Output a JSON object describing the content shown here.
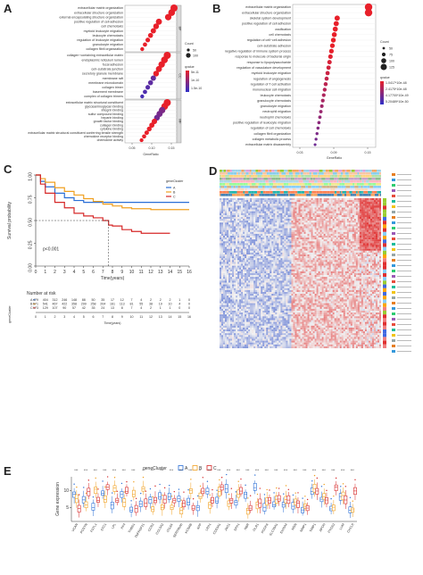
{
  "panels": {
    "A": {
      "letter": "A",
      "xlabel": "GeneRatio",
      "xticks": [
        "0.05",
        "0.10",
        "0.15"
      ],
      "facets": [
        "BP",
        "CC",
        "MF"
      ],
      "terms_bp": [
        "extracellular matrix organization",
        "extracellular structure organization",
        "external encapsulating structure organization",
        "positive regulation of cell adhesion",
        "cell chemotaxis",
        "myeloid leukocyte migration",
        "leukocyte chemotaxis",
        "regulation of leukocyte migration",
        "granulocyte migration",
        "collagen fibril organization"
      ],
      "terms_cc": [
        "collagen−containing extracellular matrix",
        "endoplasmic reticulum lumen",
        "focal adhesion",
        "cell−substrate junction",
        "secretory granule membrane",
        "membrane raft",
        "membrane microdomain",
        "collagen trimer",
        "basement membrane",
        "complex of collagen trimers"
      ],
      "terms_mf": [
        "extracellular matrix structural constituent",
        "glycosaminoglycan binding",
        "integrin binding",
        "sulfur compound binding",
        "heparin binding",
        "growth factor binding",
        "collagen binding",
        "cytokine binding",
        "extracellular matrix structural constituent conferring tensile strength",
        "chemokine receptor binding",
        "chemokine activity"
      ],
      "legend_count_title": "Count",
      "legend_count_values": [
        "50",
        "100"
      ],
      "legend_q_title": "qvalue",
      "legend_q_values": [
        "5e-11",
        "1e-10",
        "1.5e-10"
      ]
    },
    "B": {
      "letter": "B",
      "xlabel": "GeneRatio",
      "xticks": [
        "0.03",
        "0.09",
        "0.15"
      ],
      "terms": [
        "extracellular matrix organization",
        "extracellular structure organization",
        "skeletal system development",
        "positive regulation of cell adhesion",
        "ossification",
        "cell chemotaxis",
        "regulation of cell−cell adhesion",
        "cell−substrate adhesion",
        "negative regulation of immune system process",
        "response to molecule of bacterial origin",
        "response to lipopolysaccharide",
        "regulation of vasculature development",
        "myeloid leukocyte migration",
        "regulation of angiogenesis",
        "regulation of T cell activation",
        "mononuclear cell migration",
        "leukocyte chemotaxis",
        "granulocyte chemotaxis",
        "granulocyte migration",
        "neutrophil migration",
        "neutrophil chemotaxis",
        "positive regulation of leukocyte migration",
        "regulation of cell chemotaxis",
        "collagen fibril organization",
        "collagen metabolic process",
        "extracellular matrix disassembly"
      ],
      "legend_count_title": "Count",
      "legend_count_values": [
        "50",
        "75",
        "100",
        "125"
      ],
      "legend_q_title": "qvalue",
      "legend_q_values": [
        "1.0417*10e-48",
        "2.4175*10e-48",
        "4.17700*10e-49",
        "5.20489*10e-50"
      ]
    },
    "C": {
      "letter": "C",
      "ylabel": "Survival probability",
      "xlabel": "Time(years)",
      "pvalue": "p<0.001",
      "legend_title": "geneCluster",
      "legend_items": [
        "A",
        "B",
        "C"
      ],
      "xticks": [
        "0",
        "1",
        "2",
        "3",
        "4",
        "5",
        "6",
        "7",
        "8",
        "9",
        "10",
        "11",
        "12",
        "13",
        "14",
        "15",
        "16"
      ],
      "yticks": [
        "0.00",
        "0.25",
        "0.50",
        "0.75",
        "1.00"
      ],
      "risk_title": "Number at risk",
      "risk_ylabel": "geneCluster",
      "risk_rows": [
        {
          "label": "A",
          "values": "479 404 312 246 148 88 50 35 17 12 7 4 2 2 2 1 0"
        },
        {
          "label": "B",
          "values": "571 541 467 422 358 299 258 204 161 113 81 55 38 19 10 4 0"
        },
        {
          "label": "C",
          "values": "173 129 107 90 57 42 35 24 13 8 7 4 2 1 1 0 0"
        }
      ]
    },
    "D": {
      "letter": "D"
    },
    "E": {
      "letter": "E",
      "legend_title": "geneCluster",
      "legend_items": [
        "A",
        "B",
        "C"
      ],
      "ylabel": "Gene expression",
      "yticks": [
        "5",
        "10"
      ],
      "genes": [
        "VCAN",
        "POSTN",
        "FSTL1",
        "STC1",
        "LPL",
        "PF4",
        "THBS1",
        "TNFRSF21",
        "CCR2",
        "COL5A2",
        "ITGAX",
        "SERPINA5",
        "KCNAB",
        "APP",
        "LRP1",
        "CD53A1",
        "JAG1",
        "SPP1",
        "NBR",
        "OLR1",
        "PDGFA",
        "SLC39A1",
        "S100A4",
        "MSN",
        "MMP1",
        "TIMP1",
        "APOH",
        "PTGS2",
        "LUM",
        "CXCL6"
      ],
      "significance": [
        "***",
        "***",
        "***",
        "***",
        "***",
        "***",
        "***",
        "*",
        "***",
        "***",
        "***",
        "***",
        "***",
        "**",
        "***",
        "***",
        "***",
        "***",
        "***",
        "***",
        "***",
        "***",
        "***",
        "***",
        "***",
        "***",
        "***",
        "***",
        "***",
        "***"
      ]
    }
  },
  "colors": {
    "cluster_a": "#2b6fd6",
    "cluster_b": "#f0a020",
    "cluster_c": "#d62828",
    "dot_red": "#e8202a",
    "dot_blue": "#3030c8",
    "heat_red": "#e03030",
    "heat_blue": "#3050c8"
  }
}
